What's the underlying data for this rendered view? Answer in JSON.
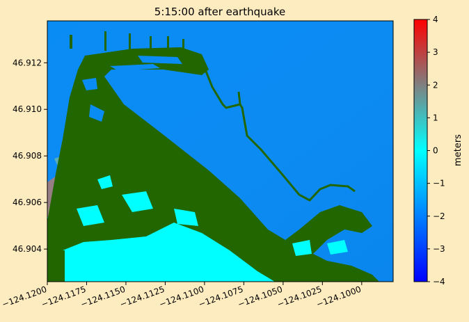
{
  "chart_data": {
    "type": "heatmap",
    "title": "5:15:00 after earthquake",
    "xlabel": "",
    "ylabel": "",
    "xlim": [
      -124.12,
      -124.098
    ],
    "ylim": [
      46.9026,
      46.9138
    ],
    "xticks": [
      -124.12,
      -124.1175,
      -124.115,
      -124.1125,
      -124.11,
      -124.1075,
      -124.105,
      -124.1025,
      -124.1
    ],
    "xtick_labels": [
      "−124.1200",
      "−124.1175",
      "−124.1150",
      "−124.1125",
      "−124.1100",
      "−124.1075",
      "−124.1050",
      "−124.1025",
      "−124.1000"
    ],
    "yticks": [
      46.904,
      46.906,
      46.908,
      46.91,
      46.912
    ],
    "ytick_labels": [
      "46.904",
      "46.906",
      "46.908",
      "46.910",
      "46.912"
    ],
    "grid": false,
    "colorbar": {
      "label": "meters",
      "vmin": -4,
      "vmax": 4,
      "ticks": [
        -4,
        -3,
        -2,
        -1,
        0,
        1,
        2,
        3,
        4
      ],
      "tick_labels": [
        "−4",
        "−3",
        "−2",
        "−1",
        "0",
        "1",
        "2",
        "3",
        "4"
      ],
      "colors": [
        "#0000ff",
        "#00ffff",
        "#ff0000"
      ]
    },
    "colors": {
      "water": "#0a8cf5",
      "inundation": "#00ffff",
      "land": "#226600",
      "high": "#b07a70"
    }
  }
}
